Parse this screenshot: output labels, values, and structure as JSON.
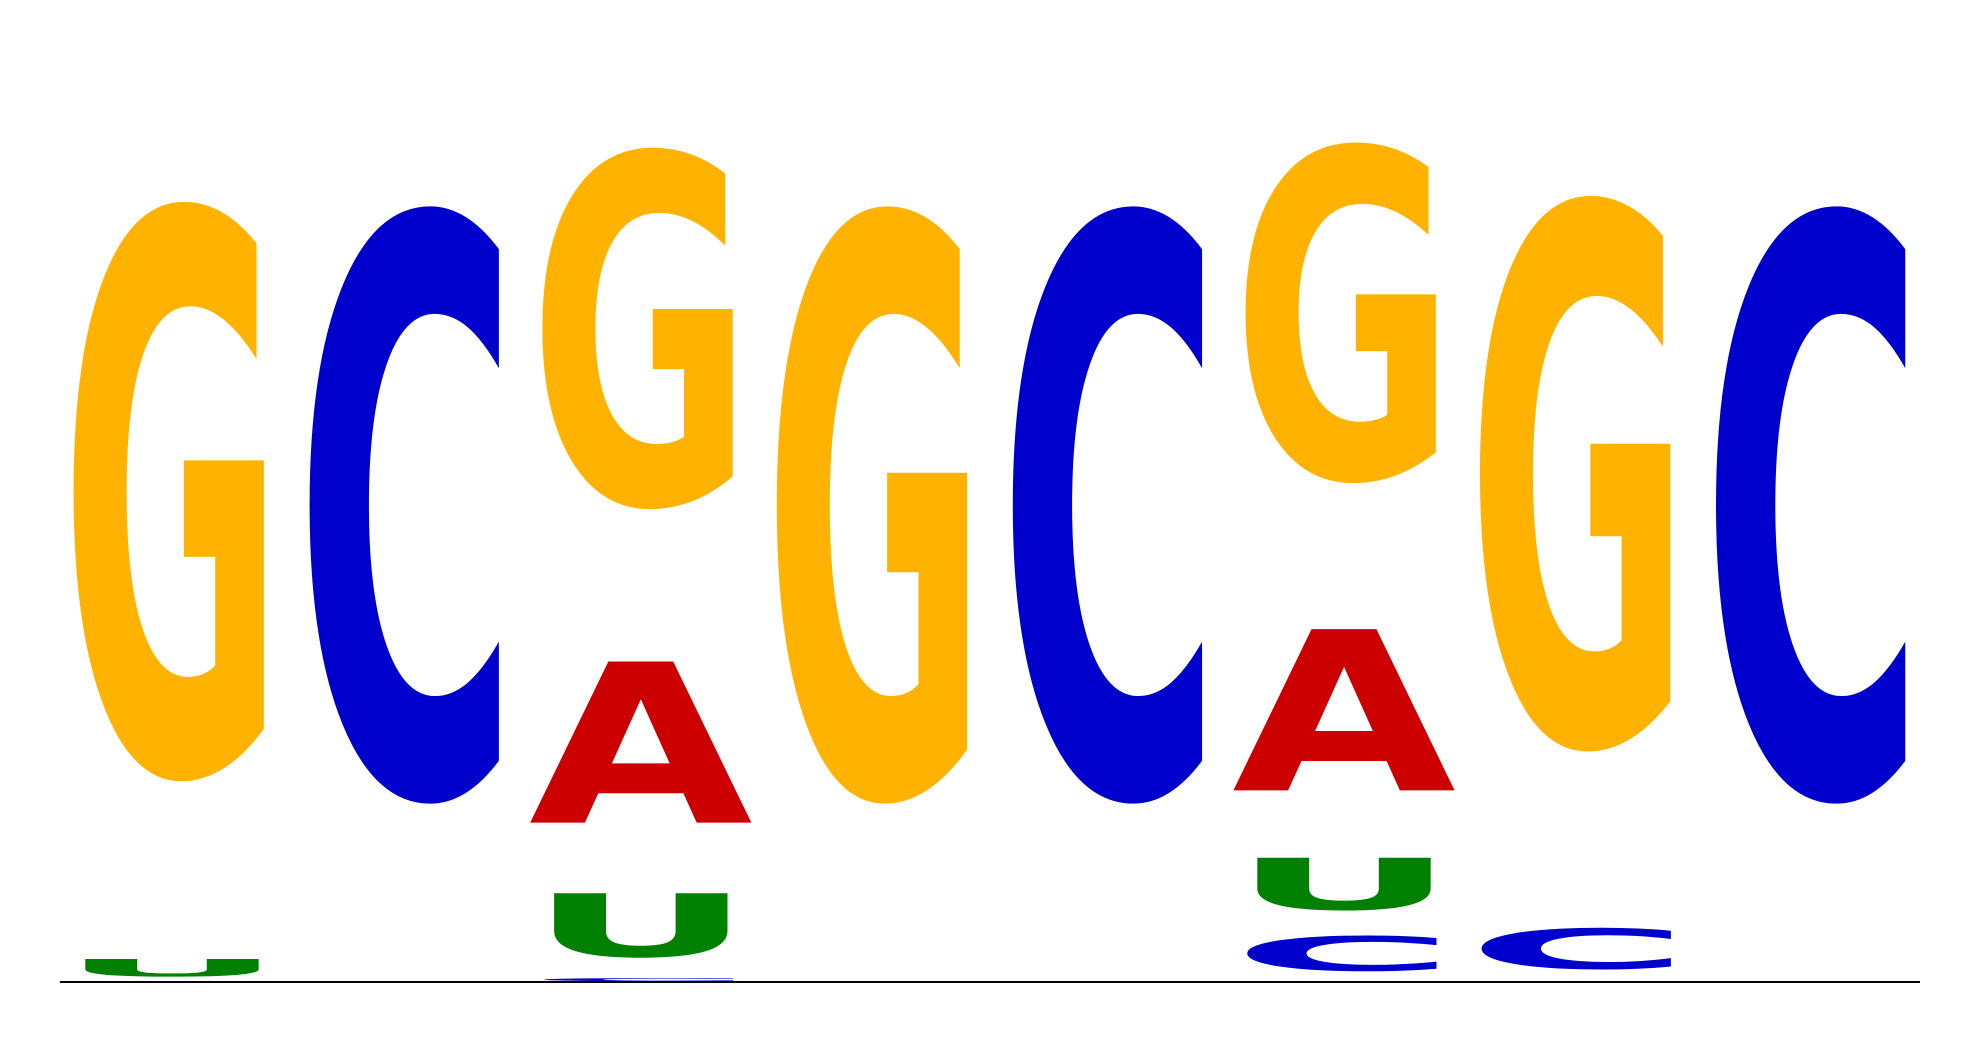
{
  "chart_data": {
    "type": "sequence-logo",
    "alphabet": [
      "A",
      "C",
      "G",
      "U"
    ],
    "colors": {
      "A": "#CC0000",
      "C": "#0000CC",
      "G": "#FFB300",
      "U": "#008000"
    },
    "ylim": [
      0,
      2
    ],
    "unit": "bits",
    "positions": [
      {
        "letters": [
          {
            "base": "U",
            "bits": 0.06
          },
          {
            "base": "G",
            "bits": 1.94
          }
        ]
      },
      {
        "letters": [
          {
            "base": "C",
            "bits": 2.0
          }
        ]
      },
      {
        "letters": [
          {
            "base": "C",
            "bits": 0.01
          },
          {
            "base": "U",
            "bits": 0.22
          },
          {
            "base": "A",
            "bits": 0.56
          },
          {
            "base": "G",
            "bits": 1.21
          }
        ]
      },
      {
        "letters": [
          {
            "base": "G",
            "bits": 2.0
          }
        ]
      },
      {
        "letters": [
          {
            "base": "C",
            "bits": 2.0
          }
        ]
      },
      {
        "letters": [
          {
            "base": "C",
            "bits": 0.12
          },
          {
            "base": "U",
            "bits": 0.18
          },
          {
            "base": "A",
            "bits": 0.56
          },
          {
            "base": "G",
            "bits": 1.14
          }
        ]
      },
      {
        "letters": [
          {
            "base": "C",
            "bits": 0.14
          },
          {
            "base": "G",
            "bits": 1.86
          }
        ]
      },
      {
        "letters": [
          {
            "base": "C",
            "bits": 2.0
          }
        ]
      }
    ]
  }
}
